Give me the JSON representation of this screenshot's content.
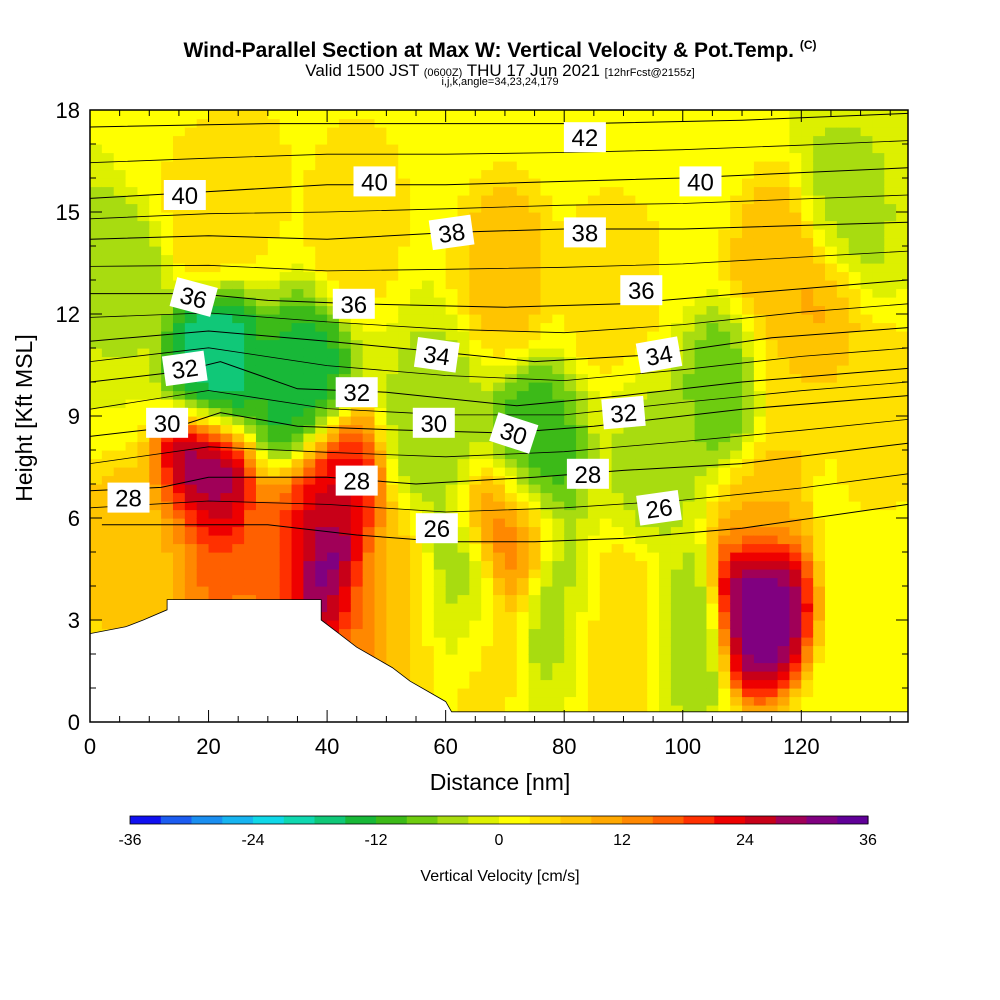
{
  "header": {
    "title": "Wind-Parallel Section at Max W: Vertical Velocity & Pot.Temp.",
    "copyright": "(C)",
    "subtitle_main_a": "Valid 1500 JST",
    "subtitle_small_a": "(0600Z)",
    "subtitle_main_b": "THU 17 Jun 2021",
    "subtitle_small_b": "[12hrFcst@2155z]",
    "subtitle_line3": "i,j,k,angle=34,23,24,179"
  },
  "chart_data": {
    "type": "heatmap",
    "title": "Wind-Parallel Section at Max W: Vertical Velocity & Pot.Temp.",
    "xlabel": "Distance [nm]",
    "ylabel": "Height [Kft MSL]",
    "xlim": [
      0,
      138
    ],
    "ylim": [
      0,
      18
    ],
    "x_ticks": [
      0,
      20,
      40,
      60,
      80,
      100,
      120
    ],
    "y_ticks": [
      0,
      3,
      6,
      9,
      12,
      15,
      18
    ],
    "grid": false,
    "colorbar": {
      "label": "Vertical Velocity [cm/s]",
      "tick_values": [
        -36,
        -24,
        -12,
        0,
        12,
        24,
        36
      ],
      "tick_labels": [
        "-36",
        "-24",
        "-12",
        "0",
        "12",
        "24",
        "36"
      ],
      "levels_min": -36,
      "level_step": 3,
      "colors": [
        "#1010f0",
        "#1c5cf0",
        "#1a8ef0",
        "#17b4f0",
        "#10d8e8",
        "#10d8b0",
        "#10c878",
        "#18b838",
        "#3cba18",
        "#6ecc10",
        "#a8dc10",
        "#ddf000",
        "#ffff00",
        "#ffe000",
        "#ffc400",
        "#ffa800",
        "#ff8800",
        "#ff6000",
        "#ff3000",
        "#ee0000",
        "#c80018",
        "#a00058",
        "#800080",
        "#600098"
      ]
    },
    "velocity_cells": [
      {
        "x": 5,
        "z": 5.0,
        "w": 9
      },
      {
        "x": 19,
        "z": 7.0,
        "w": 33
      },
      {
        "x": 19,
        "z": 4.8,
        "w": 18
      },
      {
        "x": 21,
        "z": 10.5,
        "w": -18
      },
      {
        "x": 14,
        "z": 5.0,
        "w": 6
      },
      {
        "x": 33,
        "z": 4.6,
        "w": 18
      },
      {
        "x": 40,
        "z": 4.2,
        "w": 38
      },
      {
        "x": 41,
        "z": 6.8,
        "w": 25
      },
      {
        "x": 44,
        "z": 2.8,
        "w": 15
      },
      {
        "x": 36,
        "z": 9.8,
        "w": -15
      },
      {
        "x": 49,
        "z": 3.5,
        "w": 9
      },
      {
        "x": 55,
        "z": 3.0,
        "w": 6
      },
      {
        "x": 62,
        "z": 3.5,
        "w": -9
      },
      {
        "x": 65,
        "z": 2.5,
        "w": 6
      },
      {
        "x": 71,
        "z": 5.5,
        "w": 15
      },
      {
        "x": 75,
        "z": 7.8,
        "w": -12
      },
      {
        "x": 80,
        "z": 3.5,
        "w": -6
      },
      {
        "x": 86,
        "z": 3.0,
        "w": 6
      },
      {
        "x": 93,
        "z": 2.5,
        "w": 6
      },
      {
        "x": 100,
        "z": 2.5,
        "w": -6
      },
      {
        "x": 113,
        "z": 3.5,
        "w": 35
      },
      {
        "x": 113,
        "z": 6.5,
        "w": 9
      },
      {
        "x": 117,
        "z": 10.0,
        "w": 6
      },
      {
        "x": 116,
        "z": 13.5,
        "w": 9
      },
      {
        "x": 122,
        "z": 12.5,
        "w": 10
      },
      {
        "x": 133,
        "z": 9.0,
        "w": 6
      },
      {
        "x": 5,
        "z": 13.5,
        "w": -6
      },
      {
        "x": 12,
        "z": 17.0,
        "w": 3
      },
      {
        "x": 20,
        "z": 15.0,
        "w": 6
      },
      {
        "x": 27,
        "z": 16.0,
        "w": 4
      },
      {
        "x": 45,
        "z": 15.0,
        "w": 6
      },
      {
        "x": 55,
        "z": 17.5,
        "w": 3
      },
      {
        "x": 70,
        "z": 13.5,
        "w": 8
      },
      {
        "x": 88,
        "z": 13.0,
        "w": 6
      },
      {
        "x": 100,
        "z": 15.5,
        "w": 3
      },
      {
        "x": 83,
        "z": 17.0,
        "w": 3
      },
      {
        "x": 108,
        "z": 9.5,
        "w": -9
      },
      {
        "x": 127,
        "z": 15.0,
        "w": -5
      },
      {
        "x": 58,
        "z": 9.0,
        "w": -5
      },
      {
        "x": 95,
        "z": 7.5,
        "w": -4
      }
    ],
    "terrain_profile": [
      {
        "x": 0,
        "z": 2.6
      },
      {
        "x": 6,
        "z": 2.8
      },
      {
        "x": 9,
        "z": 3.0
      },
      {
        "x": 13,
        "z": 3.3
      },
      {
        "x": 13,
        "z": 3.6
      },
      {
        "x": 39,
        "z": 3.6
      },
      {
        "x": 39,
        "z": 3.0
      },
      {
        "x": 42,
        "z": 2.6
      },
      {
        "x": 45,
        "z": 2.2
      },
      {
        "x": 48,
        "z": 1.9
      },
      {
        "x": 51,
        "z": 1.6
      },
      {
        "x": 54,
        "z": 1.2
      },
      {
        "x": 57,
        "z": 0.9
      },
      {
        "x": 60,
        "z": 0.6
      },
      {
        "x": 61,
        "z": 0.3
      },
      {
        "x": 138,
        "z": 0.3
      }
    ],
    "isentropes": [
      {
        "theta": 26,
        "label_x": 58,
        "label_z": 5.7,
        "points": [
          [
            2,
            5.8
          ],
          [
            30,
            5.8
          ],
          [
            45,
            5.5
          ],
          [
            60,
            5.3
          ],
          [
            75,
            5.3
          ],
          [
            90,
            5.4
          ],
          [
            110,
            5.7
          ],
          [
            138,
            6.4
          ]
        ]
      },
      {
        "theta": 28,
        "label_x": 6,
        "label_z": 6.6,
        "points": [
          [
            0,
            6.8
          ],
          [
            12,
            6.9
          ],
          [
            20,
            7.2
          ],
          [
            40,
            7.2
          ],
          [
            55,
            7.0
          ],
          [
            75,
            7.2
          ],
          [
            90,
            7.4
          ],
          [
            110,
            7.6
          ],
          [
            138,
            8.2
          ]
        ]
      },
      {
        "theta": 30,
        "label_x": 13,
        "label_z": 8.8,
        "points": [
          [
            0,
            8.4
          ],
          [
            15,
            8.7
          ],
          [
            22,
            9.1
          ],
          [
            35,
            8.7
          ],
          [
            50,
            8.6
          ],
          [
            70,
            8.5
          ],
          [
            85,
            8.7
          ],
          [
            110,
            9.2
          ],
          [
            138,
            9.6
          ]
        ]
      },
      {
        "theta": 32,
        "label_x": 16,
        "label_z": 10.4,
        "points": [
          [
            0,
            10.0
          ],
          [
            15,
            10.3
          ],
          [
            22,
            10.6
          ],
          [
            35,
            9.8
          ],
          [
            50,
            9.7
          ],
          [
            72,
            9.3
          ],
          [
            90,
            9.6
          ],
          [
            110,
            10.0
          ],
          [
            138,
            10.4
          ]
        ]
      },
      {
        "theta": 34,
        "label_x": 58,
        "label_z": 10.8,
        "points": [
          [
            0,
            11.2
          ],
          [
            20,
            11.5
          ],
          [
            40,
            11.2
          ],
          [
            58,
            10.9
          ],
          [
            75,
            10.6
          ],
          [
            95,
            10.8
          ],
          [
            115,
            11.3
          ],
          [
            138,
            11.6
          ]
        ]
      },
      {
        "theta": 36,
        "label_x": 44,
        "label_z": 12.3,
        "points": [
          [
            0,
            12.6
          ],
          [
            18,
            12.6
          ],
          [
            30,
            12.4
          ],
          [
            45,
            12.3
          ],
          [
            70,
            12.2
          ],
          [
            90,
            12.3
          ],
          [
            110,
            12.6
          ],
          [
            138,
            13.0
          ]
        ]
      },
      {
        "theta": 38,
        "label_x": 61,
        "label_z": 14.5,
        "points": [
          [
            0,
            14.2
          ],
          [
            20,
            14.3
          ],
          [
            40,
            14.2
          ],
          [
            61,
            14.4
          ],
          [
            80,
            14.5
          ],
          [
            100,
            14.5
          ],
          [
            138,
            14.7
          ]
        ]
      },
      {
        "theta": 40,
        "label_x": 16,
        "label_z": 15.5,
        "points": [
          [
            0,
            15.4
          ],
          [
            20,
            15.6
          ],
          [
            40,
            15.8
          ],
          [
            60,
            15.8
          ],
          [
            80,
            15.9
          ],
          [
            100,
            16.0
          ],
          [
            138,
            16.3
          ]
        ]
      },
      {
        "theta": 42,
        "label_x": 83,
        "label_z": 17.2,
        "points": [
          [
            0,
            17.5
          ],
          [
            30,
            17.6
          ],
          [
            60,
            17.6
          ],
          [
            83,
            17.6
          ],
          [
            110,
            17.7
          ],
          [
            138,
            17.9
          ]
        ]
      }
    ],
    "contour_labels": [
      {
        "text": "42",
        "x": 83.5,
        "z": 17.2,
        "rot": 0
      },
      {
        "text": "40",
        "x": 16.0,
        "z": 15.5,
        "rot": 0
      },
      {
        "text": "40",
        "x": 48.0,
        "z": 15.9,
        "rot": 0
      },
      {
        "text": "40",
        "x": 103.0,
        "z": 15.9,
        "rot": 0
      },
      {
        "text": "38",
        "x": 61.0,
        "z": 14.4,
        "rot": -8
      },
      {
        "text": "38",
        "x": 83.5,
        "z": 14.4,
        "rot": 0
      },
      {
        "text": "36",
        "x": 17.5,
        "z": 12.5,
        "rot": 15
      },
      {
        "text": "36",
        "x": 44.5,
        "z": 12.3,
        "rot": 0
      },
      {
        "text": "36",
        "x": 93.0,
        "z": 12.7,
        "rot": 0
      },
      {
        "text": "34",
        "x": 58.5,
        "z": 10.8,
        "rot": 8
      },
      {
        "text": "34",
        "x": 96.0,
        "z": 10.8,
        "rot": -10
      },
      {
        "text": "32",
        "x": 16.0,
        "z": 10.4,
        "rot": -8
      },
      {
        "text": "32",
        "x": 45.0,
        "z": 9.7,
        "rot": 0
      },
      {
        "text": "32",
        "x": 90.0,
        "z": 9.1,
        "rot": -5
      },
      {
        "text": "30",
        "x": 13.0,
        "z": 8.8,
        "rot": 0
      },
      {
        "text": "30",
        "x": 58.0,
        "z": 8.8,
        "rot": 0
      },
      {
        "text": "30",
        "x": 71.5,
        "z": 8.5,
        "rot": 18
      },
      {
        "text": "28",
        "x": 6.5,
        "z": 6.6,
        "rot": 0
      },
      {
        "text": "28",
        "x": 45.0,
        "z": 7.1,
        "rot": 0
      },
      {
        "text": "28",
        "x": 84.0,
        "z": 7.3,
        "rot": 0
      },
      {
        "text": "26",
        "x": 58.5,
        "z": 5.7,
        "rot": 0
      },
      {
        "text": "26",
        "x": 96.0,
        "z": 6.3,
        "rot": -8
      }
    ]
  }
}
